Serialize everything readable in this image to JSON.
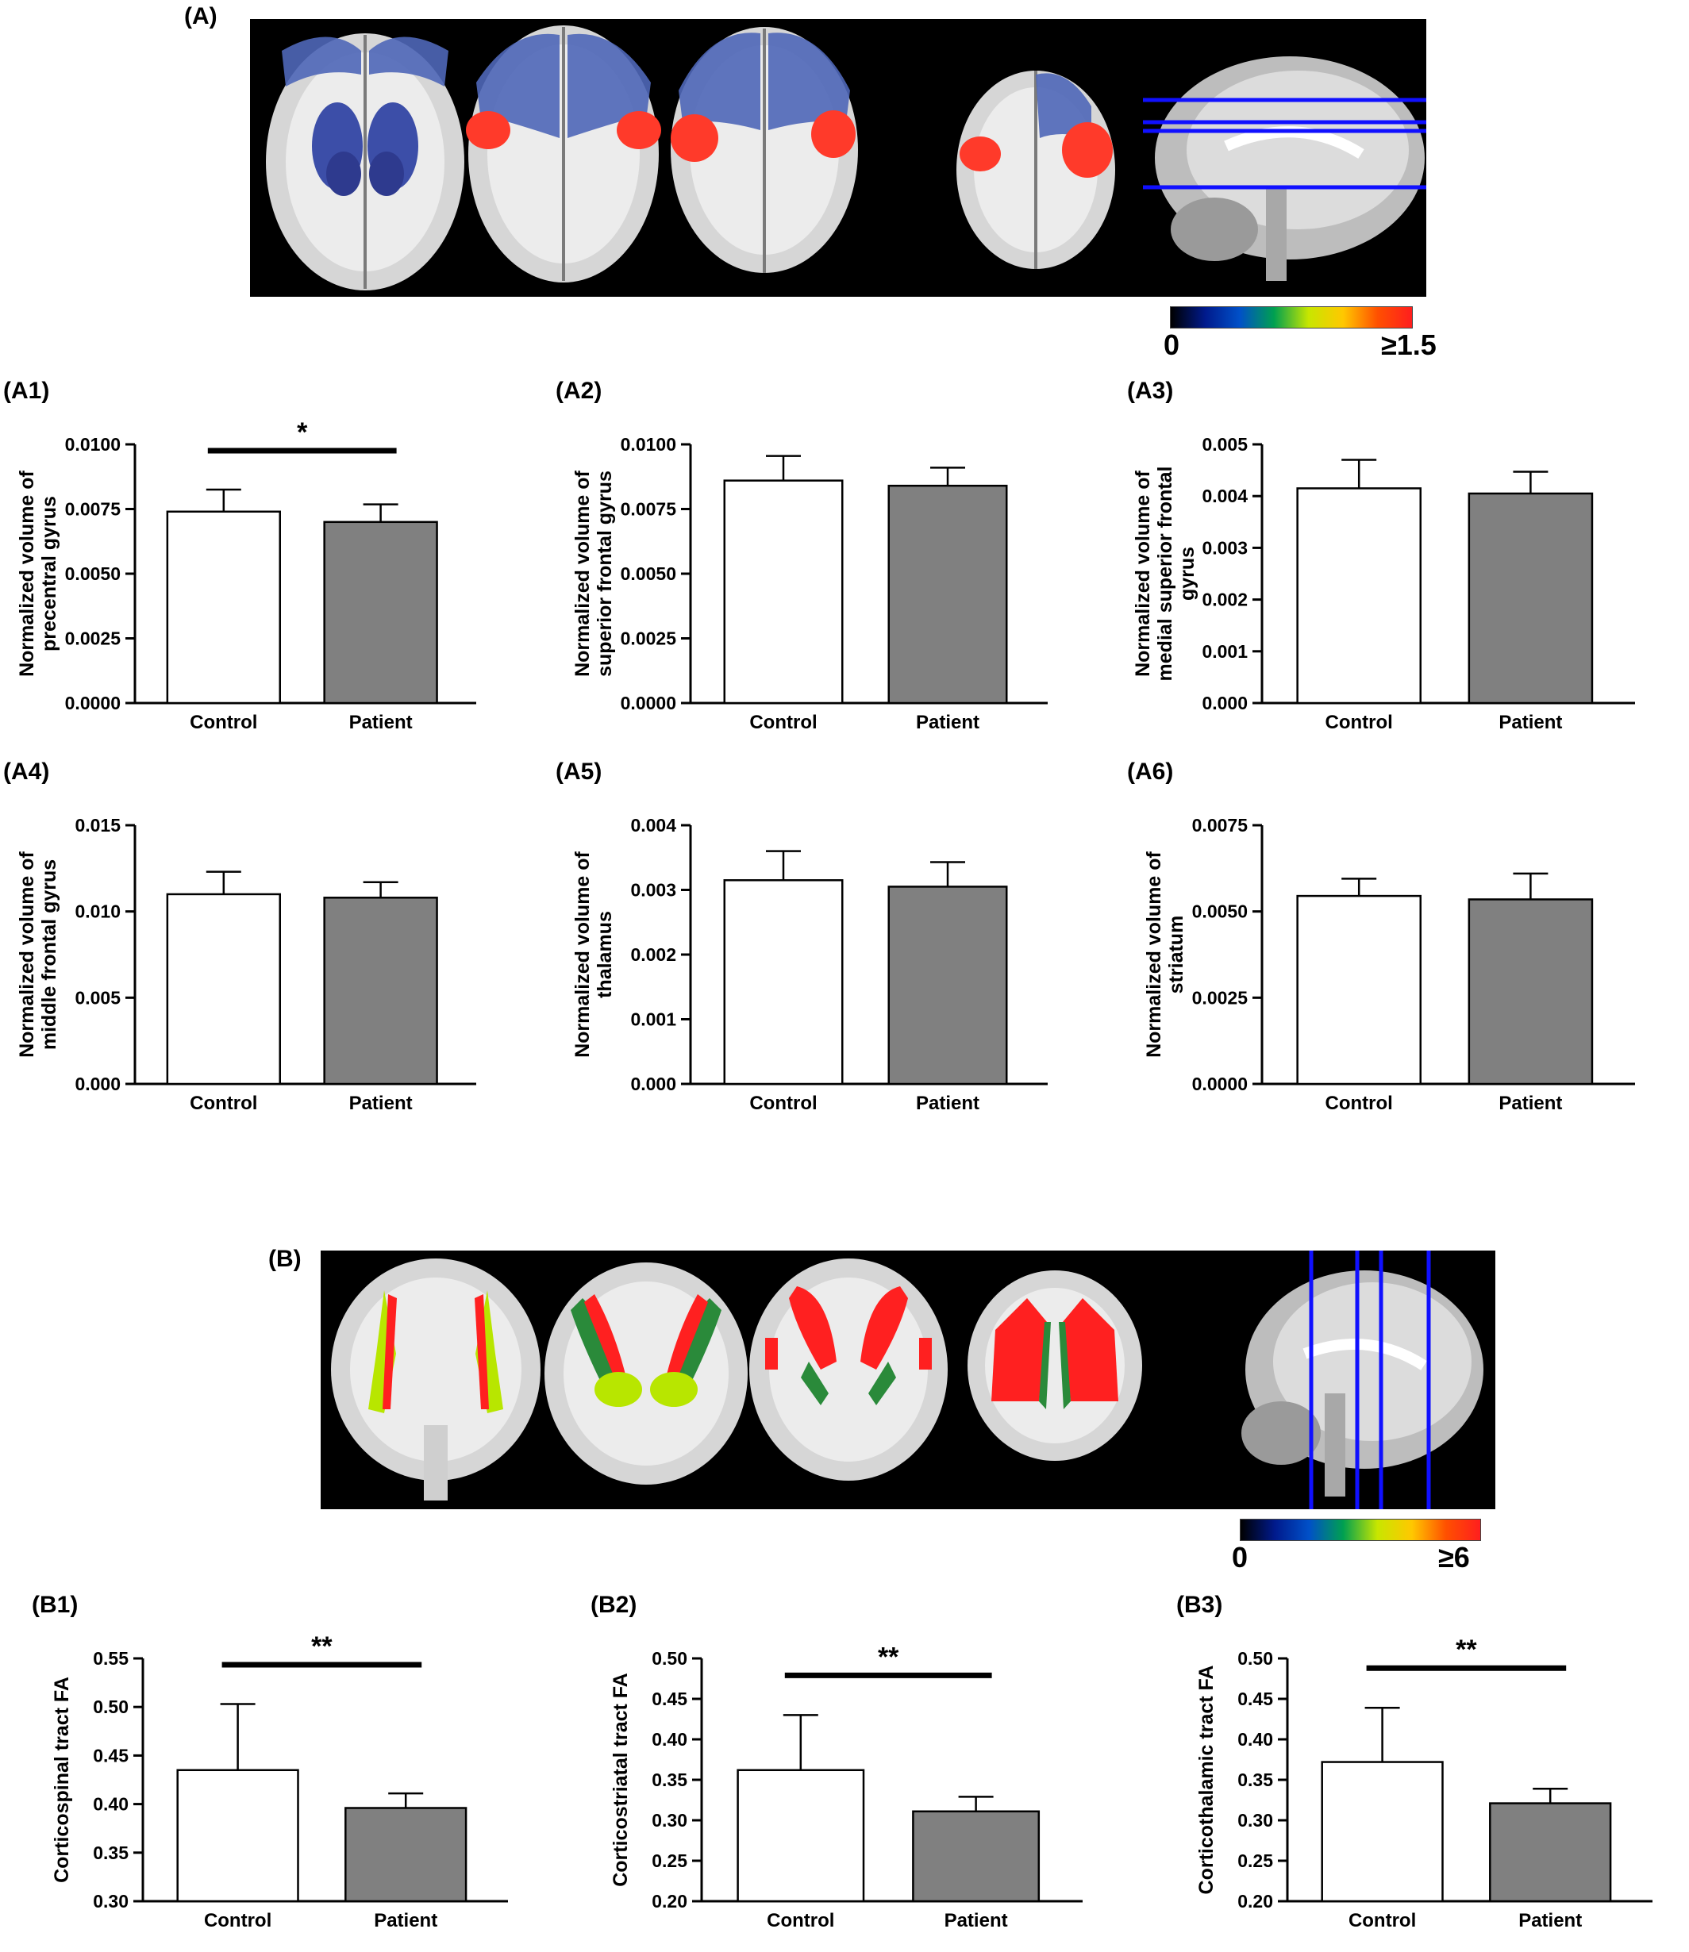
{
  "panels": {
    "A": "(A)",
    "A1": "(A1)",
    "A2": "(A2)",
    "A3": "(A3)",
    "A4": "(A4)",
    "A5": "(A5)",
    "A6": "(A6)",
    "B": "(B)",
    "B1": "(B1)",
    "B2": "(B2)",
    "B3": "(B3)"
  },
  "colorbars": {
    "A": {
      "min": "0",
      "max": "≥1.5",
      "colors": [
        "#000000",
        "#001a8c",
        "#0050c8",
        "#00a050",
        "#c8e600",
        "#ffc800",
        "#ff5000",
        "#ff1e1e"
      ]
    },
    "B": {
      "min": "0",
      "max": "≥6",
      "colors": [
        "#000000",
        "#001a8c",
        "#0050c8",
        "#00a050",
        "#c8e600",
        "#ffc800",
        "#ff5000",
        "#ff1e1e"
      ]
    }
  },
  "colors": {
    "control": "#ffffff",
    "patient": "#808080",
    "roi_blue": "#3c4ea8",
    "roi_red": "#ff3a2a",
    "tract_green": "#2a8a3a",
    "tract_lime": "#b8e600",
    "slice_line": "#1010ff"
  },
  "chart_data": [
    {
      "id": "A1",
      "type": "bar",
      "categories": [
        "Control",
        "Patient"
      ],
      "values": [
        0.0074,
        0.007
      ],
      "errors": [
        0.00085,
        0.00068
      ],
      "ylabel": [
        "Normalized volume of",
        "precentral gyrus"
      ],
      "yticks": [
        "0.0000",
        "0.0025",
        "0.0050",
        "0.0075",
        "0.0100"
      ],
      "ylim": [
        0,
        0.01
      ],
      "significance": "*"
    },
    {
      "id": "A2",
      "type": "bar",
      "categories": [
        "Control",
        "Patient"
      ],
      "values": [
        0.0086,
        0.0084
      ],
      "errors": [
        0.00095,
        0.0007
      ],
      "ylabel": [
        "Normalized volume of",
        "superior frontal gyrus"
      ],
      "yticks": [
        "0.0000",
        "0.0025",
        "0.0050",
        "0.0075",
        "0.0100"
      ],
      "ylim": [
        0,
        0.01
      ],
      "significance": ""
    },
    {
      "id": "A3",
      "type": "bar",
      "categories": [
        "Control",
        "Patient"
      ],
      "values": [
        0.00415,
        0.00405
      ],
      "errors": [
        0.00055,
        0.00042
      ],
      "ylabel": [
        "Normalized volume of",
        "medial superior frontal",
        "gyrus"
      ],
      "yticks": [
        "0.000",
        "0.001",
        "0.002",
        "0.003",
        "0.004",
        "0.005"
      ],
      "ylim": [
        0,
        0.005
      ],
      "significance": ""
    },
    {
      "id": "A4",
      "type": "bar",
      "categories": [
        "Control",
        "Patient"
      ],
      "values": [
        0.011,
        0.0108
      ],
      "errors": [
        0.0013,
        0.0009
      ],
      "ylabel": [
        "Normalized volume of",
        "middle frontal gyrus"
      ],
      "yticks": [
        "0.000",
        "0.005",
        "0.010",
        "0.015"
      ],
      "ylim": [
        0,
        0.015
      ],
      "significance": ""
    },
    {
      "id": "A5",
      "type": "bar",
      "categories": [
        "Control",
        "Patient"
      ],
      "values": [
        0.00315,
        0.00305
      ],
      "errors": [
        0.00045,
        0.00038
      ],
      "ylabel": [
        "Normalized volume of",
        "thalamus"
      ],
      "yticks": [
        "0.000",
        "0.001",
        "0.002",
        "0.003",
        "0.004"
      ],
      "ylim": [
        0,
        0.004
      ],
      "significance": ""
    },
    {
      "id": "A6",
      "type": "bar",
      "categories": [
        "Control",
        "Patient"
      ],
      "values": [
        0.00545,
        0.00535
      ],
      "errors": [
        0.0005,
        0.00075
      ],
      "ylabel": [
        "Normalized volume of",
        "striatum"
      ],
      "yticks": [
        "0.0000",
        "0.0025",
        "0.0050",
        "0.0075"
      ],
      "ylim": [
        0,
        0.0075
      ],
      "significance": ""
    },
    {
      "id": "B1",
      "type": "bar",
      "categories": [
        "Control",
        "Patient"
      ],
      "values": [
        0.435,
        0.396
      ],
      "errors": [
        0.068,
        0.015
      ],
      "ylabel": [
        "Corticospinal tract FA"
      ],
      "yticks": [
        "0.30",
        "0.35",
        "0.40",
        "0.45",
        "0.50",
        "0.55"
      ],
      "ylim": [
        0.3,
        0.55
      ],
      "significance": "**"
    },
    {
      "id": "B2",
      "type": "bar",
      "categories": [
        "Control",
        "Patient"
      ],
      "values": [
        0.362,
        0.311
      ],
      "errors": [
        0.068,
        0.018
      ],
      "ylabel": [
        "Corticostriatal tract FA"
      ],
      "yticks": [
        "0.20",
        "0.25",
        "0.30",
        "0.35",
        "0.40",
        "0.45",
        "0.50"
      ],
      "ylim": [
        0.2,
        0.5
      ],
      "significance": "**"
    },
    {
      "id": "B3",
      "type": "bar",
      "categories": [
        "Control",
        "Patient"
      ],
      "values": [
        0.372,
        0.321
      ],
      "errors": [
        0.067,
        0.018
      ],
      "ylabel": [
        "Corticothalamic tract FA"
      ],
      "yticks": [
        "0.20",
        "0.25",
        "0.30",
        "0.35",
        "0.40",
        "0.45",
        "0.50"
      ],
      "ylim": [
        0.2,
        0.5
      ],
      "significance": "**"
    }
  ]
}
